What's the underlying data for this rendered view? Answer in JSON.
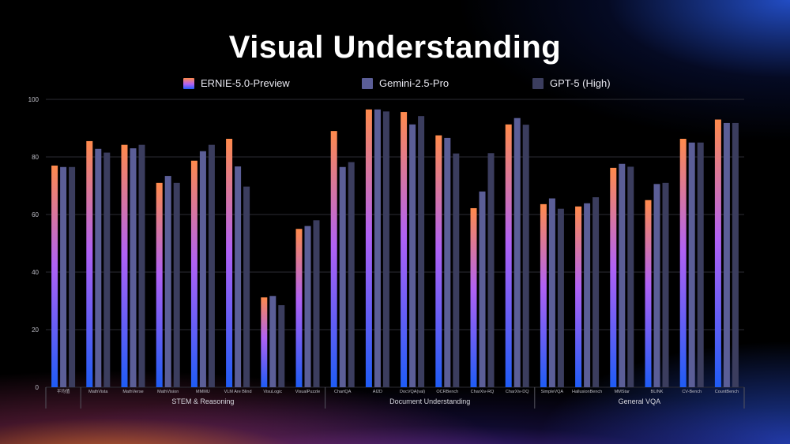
{
  "title": "Visual Understanding",
  "legend": [
    {
      "label": "ERNIE-5.0-Preview"
    },
    {
      "label": "Gemini-2.5-Pro"
    },
    {
      "label": "GPT-5 (High)"
    }
  ],
  "colors": {
    "ernie_top": "#ff8a4c",
    "ernie_mid": "#b061f5",
    "ernie_bottom": "#1f5cf5",
    "gemini": "#5b5e97",
    "gpt": "#3b3d5e",
    "grid": "#2c2c34",
    "text": "#bfbfc8"
  },
  "chart_data": {
    "type": "bar",
    "title": "Visual Understanding",
    "ylim": [
      0,
      100
    ],
    "yticks": [
      0,
      20,
      40,
      60,
      80,
      100
    ],
    "grid": true,
    "legend_position": "top",
    "categories": [
      "平均值",
      "MathVista",
      "MathVerse",
      "MathVision",
      "MMMU",
      "VLM Are Blind",
      "VisuLogic",
      "VisualPuzzle",
      "ChartQA",
      "AI2D",
      "DocVQA(val)",
      "OCRBench",
      "CharXiv-RQ",
      "CharXiv-DQ",
      "SimpleVQA",
      "HallusionBench",
      "MMStar",
      "BLINK",
      "CV-Bench",
      "CountBench"
    ],
    "groups": [
      {
        "label": "STEM & Reasoning",
        "start": 1,
        "end": 7
      },
      {
        "label": "Document Understanding",
        "start": 8,
        "end": 13
      },
      {
        "label": "General VQA",
        "start": 14,
        "end": 19
      }
    ],
    "series": [
      {
        "name": "ERNIE-5.0-Preview",
        "values": [
          77.0,
          85.5,
          84.2,
          71.0,
          78.7,
          86.3,
          31.2,
          55.0,
          89.0,
          96.5,
          95.6,
          87.5,
          62.2,
          91.3,
          63.6,
          62.8,
          76.2,
          65.0,
          86.3,
          93.0
        ]
      },
      {
        "name": "Gemini-2.5-Pro",
        "values": [
          76.5,
          82.8,
          83.0,
          73.4,
          82.0,
          76.7,
          31.7,
          56.0,
          76.5,
          96.5,
          91.3,
          86.6,
          68.0,
          93.5,
          65.6,
          63.9,
          77.6,
          70.6,
          85.0,
          91.8
        ]
      },
      {
        "name": "GPT-5 (High)",
        "values": [
          76.5,
          81.5,
          84.2,
          71.0,
          84.2,
          69.7,
          28.5,
          58.0,
          78.2,
          95.8,
          94.2,
          81.2,
          81.3,
          91.2,
          62.0,
          66.0,
          76.6,
          71.0,
          85.0,
          91.8
        ]
      }
    ]
  }
}
